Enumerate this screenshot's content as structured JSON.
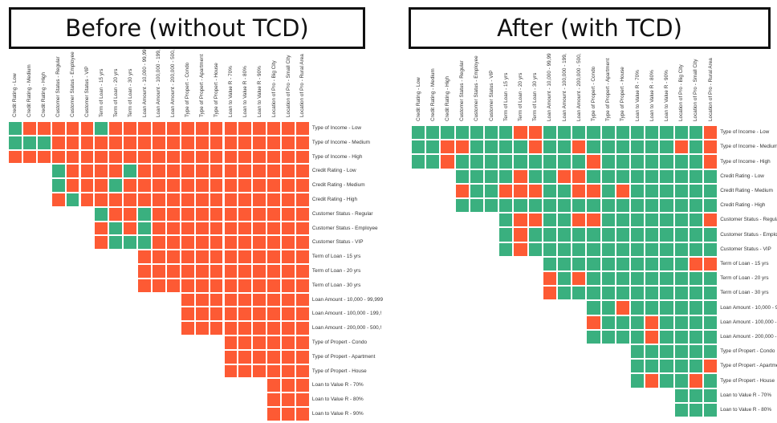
{
  "colors": {
    "green": "#3ab07f",
    "red": "#fd5a34"
  },
  "labels": {
    "columns": [
      "Credit Rating - Low",
      "Credit Rating - Medium",
      "Credit Rating - High",
      "Customer Status - Regular",
      "Customer Status - Employee",
      "Customer Status - VIP",
      "Term of Loan - 15 yrs",
      "Term of Loan - 20 yrs",
      "Term of Loan - 30 yrs",
      "Loan Amount - 10,000 - 99,99",
      "Loan Amount - 100,000 - 199,",
      "Loan Amount - 200,000 - 500,",
      "Type of Propert - Condo",
      "Type of Propert - Apartment",
      "Type of Propert - House",
      "Loan to Value R - 70%",
      "Loan to Value R - 80%",
      "Loan to Value R - 90%",
      "Location of Pro - Big City",
      "Location of Pro - Small City",
      "Location of Pro - Rural Area"
    ],
    "rows": [
      "Type of Income - Low",
      "Type of Income - Medium",
      "Type of Income - High",
      "Credit Rating - Low",
      "Credit Rating - Medium",
      "Credit Rating - High",
      "Customer Status - Regular",
      "Customer Status - Employee",
      "Customer Status - VIP",
      "Term of Loan - 15 yrs",
      "Term of Loan - 20 yrs",
      "Term of Loan - 30 yrs",
      "Loan Amount - 10,000 - 99,999",
      "Loan Amount - 100,000 - 199,!",
      "Loan Amount - 200,000 - 500,!",
      "Type of Propert - Condo",
      "Type of Propert - Apartment",
      "Type of Propert - House",
      "Loan to Value R - 70%",
      "Loan to Value R - 80%",
      "Loan to Value R - 90%"
    ]
  },
  "panels": [
    {
      "title": "Before (without TCD)",
      "rows_shown": 21,
      "grid": [
        "GRRRRRGRRRRRRRRRRRRRR",
        "GGGRRRRRRRRRRRRRRRRRR",
        "RRRRRRRRRRRRRRRRRRRRR",
        "GRRRRGRRRRRRRRRRRR",
        "GRRRGRRRRRRRRRRRRR",
        "RGRRRRRRRRRRRRRRRR",
        "GRRGRRRRRRRRRRR",
        "RGRGRRRRRRRRRRR",
        "RGGGRRRRRRRRRRR",
        "RRRRRRRRRRRR",
        "RRRRRRRRRRRR",
        "RRRRRRRRRRRR",
        "RRRRRRRRR",
        "RRRRRRRRR",
        "RRRRRRRRR",
        "RRRRRR",
        "RRRRRR",
        "RRRRRR",
        "RRR",
        "RRR",
        "RRR"
      ]
    },
    {
      "title": "After (with TCD)",
      "rows_shown": 20,
      "grid": [
        "GGGGGGGRRGGGGGGGGGGGR",
        "GGRRGGGGRGGRGGGGGGRGR",
        "GGRGGGGGGGGGRGGGGGGGR",
        "GGGGRGGRRGGGGGGGGG",
        "RGGRRRGGRRGRGGGGGG",
        "GGGGGGGGGGGGGGGGGG",
        "GRRGGRRGGGGGGGR",
        "GRGGGGGGGGGGGGG",
        "GRGGGGGGGGGGGGG",
        "GGGGGGGGGGRR",
        "RGRGGGGGGGGG",
        "RGGGGGGGGGGG",
        "GGRGGGGGG",
        "RGGGRGGGG",
        "GGGGRGGGG",
        "GGGGGG",
        "GGGGGR",
        "GRGGRG",
        "GGG",
        "GGG"
      ]
    }
  ]
}
